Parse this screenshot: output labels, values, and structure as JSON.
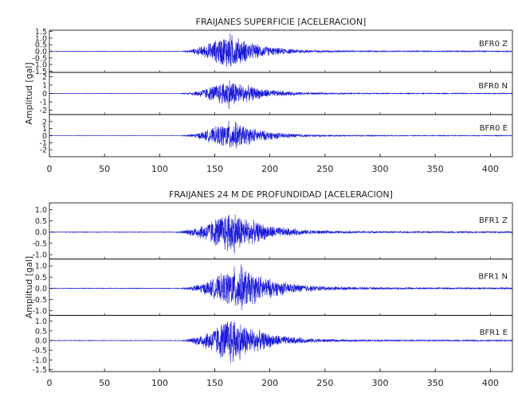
{
  "chart_data": [
    {
      "type": "line",
      "title": "FRAIJANES SUPERFICIE [ACELERACION]",
      "ylabel": "Amplitud [gal]",
      "xlabel": "",
      "xlim": [
        0,
        420
      ],
      "xticks": [
        0,
        50,
        100,
        150,
        200,
        250,
        300,
        350,
        400
      ],
      "line_color": "#1a1ad8",
      "grid": false,
      "series": [
        {
          "name": "BFR0  Z",
          "ylim": [
            -1.6,
            1.6
          ],
          "yticks": [
            1.5,
            1.0,
            0.5,
            0.0,
            -0.5,
            -1.0,
            -1.5
          ],
          "yticklabels": [
            "1.5",
            "1.0",
            "0.5",
            "0.0",
            "-0.5",
            "-1.0",
            "-1.5"
          ],
          "envelope": {
            "onset": 120,
            "peak_time": 163,
            "peak_amp": 1.6,
            "rise": 42,
            "decay": 70,
            "coda_amp": 0.05
          }
        },
        {
          "name": "BFR0  N",
          "ylim": [
            -2.5,
            2.5
          ],
          "yticks": [
            2,
            1,
            0,
            -1,
            -2
          ],
          "yticklabels": [
            "2",
            "1",
            "0",
            "-1",
            "-2"
          ],
          "envelope": {
            "onset": 120,
            "peak_time": 163,
            "peak_amp": 2.0,
            "rise": 42,
            "decay": 72,
            "coda_amp": 0.06
          }
        },
        {
          "name": "BFR0  E",
          "ylim": [
            -3,
            3
          ],
          "yticks": [
            2,
            1,
            0,
            -1,
            -2
          ],
          "yticklabels": [
            "2",
            "1",
            "0",
            "-1",
            "-2"
          ],
          "envelope": {
            "onset": 120,
            "peak_time": 165,
            "peak_amp": 2.5,
            "rise": 44,
            "decay": 72,
            "coda_amp": 0.06
          }
        }
      ]
    },
    {
      "type": "line",
      "title": "FRAIJANES 24 M DE PROFUNDIDAD [ACELERACION]",
      "ylabel": "Amplitud [gal]",
      "xlabel": "",
      "xlim": [
        0,
        420
      ],
      "xticks": [
        0,
        50,
        100,
        150,
        200,
        250,
        300,
        350,
        400
      ],
      "line_color": "#1a1ad8",
      "grid": false,
      "series": [
        {
          "name": "BFR1  Z",
          "ylim": [
            -1.2,
            1.3
          ],
          "yticks": [
            1.0,
            0.5,
            0.0,
            -0.5,
            -1.0
          ],
          "yticklabels": [
            "1.0",
            "0.5",
            "0.0",
            "-0.5",
            "-1.0"
          ],
          "envelope": {
            "onset": 115,
            "peak_time": 165,
            "peak_amp": 1.15,
            "rise": 45,
            "decay": 75,
            "coda_amp": 0.04
          }
        },
        {
          "name": "BFR1  N",
          "ylim": [
            -1.2,
            1.3
          ],
          "yticks": [
            1.0,
            0.5,
            0.0,
            -0.5,
            -1.0
          ],
          "yticklabels": [
            "1.0",
            "0.5",
            "0.0",
            "-0.5",
            "-1.0"
          ],
          "envelope": {
            "onset": 120,
            "peak_time": 172,
            "peak_amp": 1.2,
            "rise": 48,
            "decay": 80,
            "coda_amp": 0.04
          }
        },
        {
          "name": "BFR1  E",
          "ylim": [
            -1.6,
            1.3
          ],
          "yticks": [
            1.0,
            0.5,
            0.0,
            -0.5,
            -1.0,
            -1.5
          ],
          "yticklabels": [
            "1.0",
            "0.5",
            "0.0",
            "-0.5",
            "-1.0",
            "-1.5"
          ],
          "envelope": {
            "onset": 120,
            "peak_time": 165,
            "peak_amp": 1.45,
            "rise": 45,
            "decay": 75,
            "coda_amp": 0.04
          }
        }
      ]
    }
  ]
}
